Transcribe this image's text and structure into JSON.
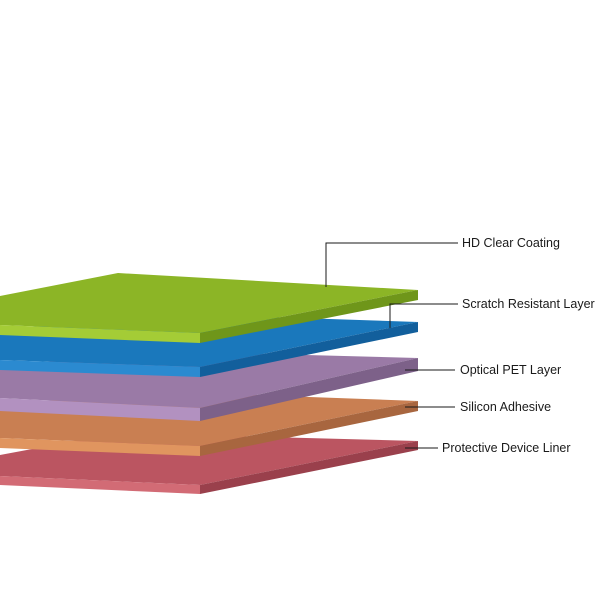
{
  "diagram": {
    "layers": [
      {
        "label": "HD Clear Coating",
        "top_color": "#8cb526",
        "front_color": "#a4cc36",
        "side_color": "#6f961a"
      },
      {
        "label": "Scratch Resistant Layer",
        "top_color": "#1a78bc",
        "front_color": "#2b8ad0",
        "side_color": "#125f9c"
      },
      {
        "label": "Optical PET Layer",
        "top_color": "#9a7aa6",
        "front_color": "#b291c0",
        "side_color": "#7d6189"
      },
      {
        "label": "Silicon Adhesive",
        "top_color": "#c97f52",
        "front_color": "#e0955f",
        "side_color": "#a8663f"
      },
      {
        "label": "Protective Device Liner",
        "top_color": "#bb5561",
        "front_color": "#d26b75",
        "side_color": "#9a404c"
      }
    ]
  }
}
